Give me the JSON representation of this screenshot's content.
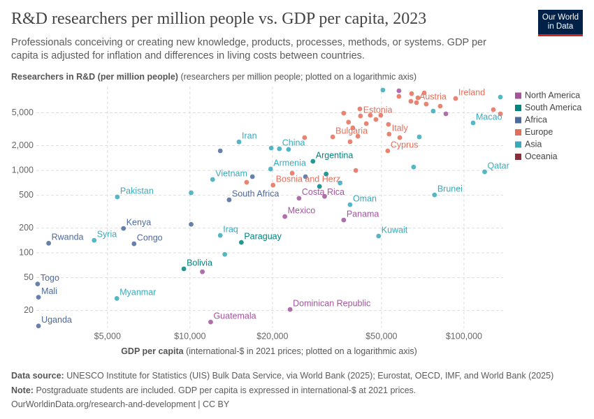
{
  "chart_data": {
    "type": "scatter",
    "title": "R&D researchers per million people vs. GDP per capita, 2023",
    "subtitle": "Professionals conceiving or creating new knowledge, products, processes, methods, or systems. GDP per capita is adjusted for inflation and differences in living costs between countries.",
    "y_label": "Researchers in R&D (per million people)",
    "y_label_note": "(researchers per million people; plotted on a logarithmic axis)",
    "x_label": "GDP per capita",
    "x_label_note": "(international-$ in 2021 prices; plotted on a logarithmic axis)",
    "source_label": "Data source:",
    "source": "UNESCO Institute for Statistics (UIS) Bulk Data Service, via World Bank (2025); Eurostat, OECD, IMF, and World Bank (2025)",
    "note_label": "Note:",
    "note": "Postgraduate students are included. GDP per capita is expressed in international-$ at 2021 prices.",
    "url": "OurWorldinData.org/research-and-development | CC BY",
    "logo": [
      "Our World",
      "in Data"
    ],
    "xscale": "log",
    "yscale": "log",
    "grid": true,
    "legend": "right",
    "xlim": [
      2750,
      139000
    ],
    "ylim": [
      12.2,
      10400
    ],
    "xticks": [
      {
        "value": 5000,
        "label": "$5,000"
      },
      {
        "value": 10000,
        "label": "$10,000"
      },
      {
        "value": 20000,
        "label": "$20,000"
      },
      {
        "value": 50000,
        "label": "$50,000"
      },
      {
        "value": 100000,
        "label": "$100,000"
      }
    ],
    "yticks": [
      20,
      50,
      100,
      200,
      500,
      {
        "value": 1000,
        "label": "1,000"
      },
      {
        "value": 2000,
        "label": "2,000"
      },
      {
        "value": 5000,
        "label": "5,000"
      }
    ],
    "series": [
      {
        "name": "North America",
        "color": "#a2559c",
        "x": [
          25000,
          22200,
          36400,
          23200,
          11900,
          31000,
          85900,
          57900,
          11100
        ],
        "y": [
          460,
          276,
          250,
          20.6,
          14.5,
          485,
          4860,
          9250,
          59
        ],
        "labels": [
          "Costa Rica",
          "Mexico",
          "Panama",
          "Dominican Republic",
          "Guatemala",
          null,
          null,
          null,
          null
        ]
      },
      {
        "name": "South America",
        "color": "#00847e",
        "x": [
          28100,
          9500,
          15400,
          31400,
          29700
        ],
        "y": [
          1290,
          64,
          134,
          905,
          640
        ],
        "labels": [
          "Argentina",
          "Bolivia",
          "Paraguay",
          null,
          null
        ]
      },
      {
        "name": "Africa",
        "color": "#4c6a9c",
        "x": [
          3050,
          2780,
          2800,
          2800,
          5720,
          6250,
          13900,
          10100,
          12900,
          16900,
          26400
        ],
        "y": [
          131,
          42,
          29,
          13,
          198,
          129,
          440,
          222,
          1730,
          840,
          840
        ],
        "labels": [
          "Rwanda",
          "Togo",
          "Mali",
          "Uganda",
          "Kenya",
          "Congo",
          "South Africa",
          null,
          null,
          null,
          null
        ]
      },
      {
        "name": "Europe",
        "color": "#e56e5a",
        "x": [
          67100,
          93200,
          41900,
          33200,
          53300,
          52700,
          20100,
          36400,
          41700,
          45500,
          49700,
          57900,
          64400,
          67900,
          71600,
          72800,
          64000,
          81900,
          128000,
          135800,
          37900,
          44000,
          47700,
          53000,
          39300,
          41000,
          38400,
          26200,
          40300,
          16100,
          23600,
          58300
        ],
        "y": [
          6640,
          7460,
          4580,
          2550,
          2760,
          1730,
          664,
          4950,
          5570,
          4670,
          4670,
          7910,
          8550,
          7610,
          8720,
          6380,
          6900,
          6020,
          5460,
          4860,
          3850,
          3700,
          4150,
          3620,
          3290,
          2600,
          2230,
          2500,
          1000,
          718,
          925,
          2500
        ],
        "labels": [
          "Austria",
          "Ireland",
          "Estonia",
          "Bulgaria",
          "Italy",
          "Cyprus",
          "Bosnia and Herz.",
          null,
          null,
          null,
          null,
          null,
          null,
          null,
          null,
          null,
          null,
          null,
          null,
          null,
          null,
          null,
          null,
          null,
          null,
          null,
          null,
          null,
          null,
          null,
          null,
          null
        ]
      },
      {
        "name": "Asia",
        "color": "#38aaba",
        "x": [
          15100,
          21200,
          19700,
          12100,
          5430,
          4470,
          5410,
          12900,
          38400,
          48800,
          119000,
          78100,
          108000,
          10100,
          13400,
          50600,
          135800,
          77200,
          68700,
          65500,
          22900,
          19800,
          35300
        ],
        "y": [
          2220,
          1830,
          1040,
          776,
          477,
          142,
          28,
          163,
          384,
          160,
          962,
          505,
          3770,
          536,
          96,
          9430,
          7760,
          5250,
          2550,
          1100,
          1800,
          1870,
          704
        ],
        "labels": [
          "Iran",
          "China",
          "Armenia",
          "Vietnam",
          "Pakistan",
          "Syria",
          "Myanmar",
          "Iraq",
          "Oman",
          "Kuwait",
          "Qatar",
          "Brunei",
          "Macao",
          null,
          null,
          null,
          null,
          null,
          null,
          null,
          null,
          null,
          null
        ]
      },
      {
        "name": "Oceania",
        "color": "#883039",
        "x": [],
        "y": [],
        "labels": []
      }
    ]
  }
}
